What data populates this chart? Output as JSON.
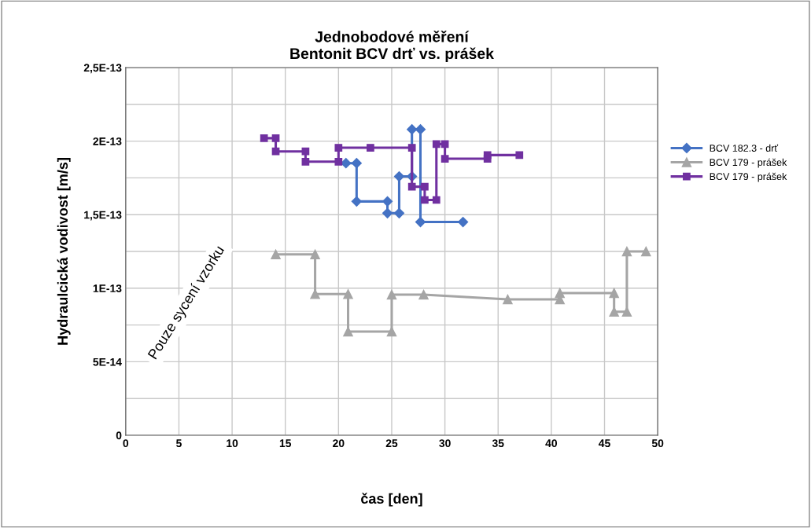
{
  "chart_data": {
    "type": "line",
    "title": "Jednobodové měření\nBentonit BCV drť vs. prášek",
    "xlabel": "čas [den]",
    "ylabel": "Hydraulcická vodivost [m/s]",
    "annotations": [
      "Pouze sycení vzorku"
    ],
    "xlim": [
      0,
      50
    ],
    "xticks": [
      0,
      5,
      10,
      15,
      20,
      25,
      30,
      35,
      40,
      45,
      50
    ],
    "ylim": [
      0,
      2.5e-13
    ],
    "yticks": [
      {
        "value": 0,
        "label": "0"
      },
      {
        "value": 2.5e-14,
        "label": null
      },
      {
        "value": 5e-14,
        "label": "5E-14"
      },
      {
        "value": 7.5e-14,
        "label": null
      },
      {
        "value": 1e-13,
        "label": "1E-13"
      },
      {
        "value": 1.25e-13,
        "label": null
      },
      {
        "value": 1.5e-13,
        "label": "1,5E-13"
      },
      {
        "value": 1.75e-13,
        "label": null
      },
      {
        "value": 2e-13,
        "label": "2E-13"
      },
      {
        "value": 2.25e-13,
        "label": null
      },
      {
        "value": 2.5e-13,
        "label": "2,5E-13"
      }
    ],
    "grid": true,
    "legend": "right",
    "line_style": "solid",
    "series": [
      {
        "name": "BCV 182.3 - drť",
        "color": "#4472c4",
        "marker": "diamond",
        "x": [
          20.7,
          21.7,
          21.7,
          24.6,
          24.6,
          25.7,
          25.7,
          26.9,
          26.9,
          27.7,
          27.7,
          31.7
        ],
        "values": [
          1.85e-13,
          1.85e-13,
          1.59e-13,
          1.59e-13,
          1.51e-13,
          1.51e-13,
          1.76e-13,
          1.76e-13,
          2.08e-13,
          2.08e-13,
          1.45e-13,
          1.45e-13
        ]
      },
      {
        "name": "BCV 179 - prášek",
        "color": "#a5a5a5",
        "marker": "triangle",
        "x": [
          14.1,
          17.8,
          17.8,
          20.9,
          20.9,
          25.0,
          25.0,
          28.0,
          35.9,
          40.8,
          40.8,
          45.9,
          45.9,
          47.1,
          47.1,
          48.9
        ],
        "values": [
          1.23e-13,
          1.23e-13,
          9.6e-14,
          9.6e-14,
          7.05e-14,
          7.05e-14,
          9.56e-14,
          9.56e-14,
          9.24e-14,
          9.24e-14,
          9.67e-14,
          9.67e-14,
          8.4e-14,
          8.4e-14,
          1.25e-13,
          1.25e-13
        ]
      },
      {
        "name": "BCV 179 - prášek",
        "color": "#7030a0",
        "marker": "square",
        "x": [
          13.0,
          14.1,
          14.1,
          16.9,
          16.9,
          20.0,
          20.0,
          23.0,
          26.9,
          26.9,
          28.1,
          28.1,
          29.2,
          29.2,
          30.0,
          30.0,
          34.0,
          34.0,
          37.0
        ],
        "values": [
          2.02e-13,
          2.02e-13,
          1.93e-13,
          1.93e-13,
          1.86e-13,
          1.86e-13,
          1.955e-13,
          1.955e-13,
          1.955e-13,
          1.69e-13,
          1.69e-13,
          1.6e-13,
          1.6e-13,
          1.98e-13,
          1.98e-13,
          1.88e-13,
          1.88e-13,
          1.905e-13,
          1.905e-13
        ]
      }
    ]
  }
}
